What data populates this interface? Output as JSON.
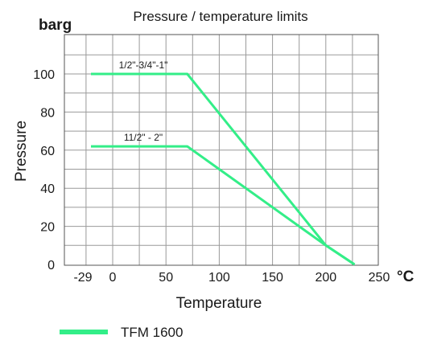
{
  "chart_data": {
    "type": "line",
    "title": "Pressure / temperature limits",
    "ylabel": "Pressure",
    "yunit": "barg",
    "xlabel": "Temperature",
    "xunit": "°C",
    "xlim": [
      -29,
      250
    ],
    "ylim": [
      0,
      115
    ],
    "x_ticks": [
      {
        "value": -29,
        "label": "-29"
      },
      {
        "value": 0,
        "label": "0"
      },
      {
        "value": 50,
        "label": "50"
      },
      {
        "value": 100,
        "label": "100"
      },
      {
        "value": 150,
        "label": "150"
      },
      {
        "value": 200,
        "label": "200"
      },
      {
        "value": 250,
        "label": "250"
      }
    ],
    "y_ticks": [
      {
        "value": 0,
        "label": "0"
      },
      {
        "value": 20,
        "label": "20"
      },
      {
        "value": 40,
        "label": "40"
      },
      {
        "value": 60,
        "label": "60"
      },
      {
        "value": 80,
        "label": "80"
      },
      {
        "value": 100,
        "label": "100"
      }
    ],
    "grid": true,
    "series_color": "#33ee88",
    "series": [
      {
        "label": "1/2\"-3/4\"-1\"",
        "points": [
          [
            -29,
            100
          ],
          [
            70,
            100
          ],
          [
            200,
            10
          ],
          [
            227,
            0
          ]
        ]
      },
      {
        "label": "11/2\" - 2\"",
        "points": [
          [
            -29,
            62
          ],
          [
            70,
            62
          ],
          [
            200,
            10
          ],
          [
            227,
            0
          ]
        ]
      }
    ],
    "legend": {
      "label": "TFM 1600",
      "placement": "bottom-left"
    }
  }
}
